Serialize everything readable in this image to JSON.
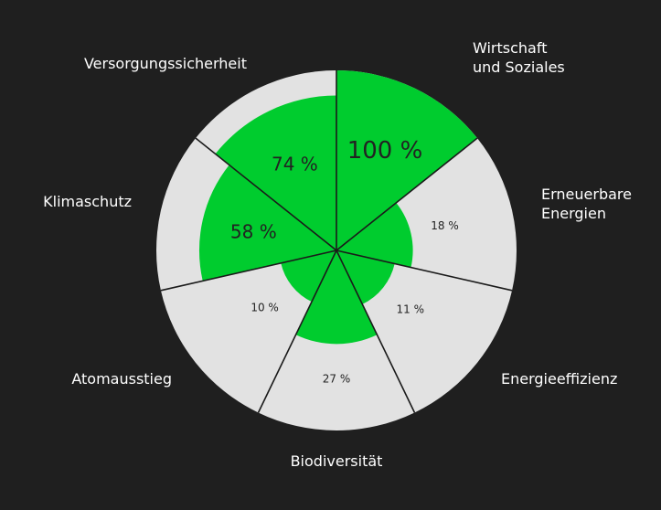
{
  "chart_data": {
    "type": "polar-area",
    "title": "",
    "scale": "area",
    "max": 100,
    "unit": " %",
    "colors": {
      "background": "#1f1f1f",
      "track": "#e2e2e2",
      "fill": "#00cc2e",
      "line": "#1a1a1a",
      "label": "#ffffff",
      "value": "#222222"
    },
    "segments": [
      {
        "name": "Wirtschaft und Soziales",
        "label_lines": [
          "Wirtschaft",
          "und Soziales"
        ],
        "value": 100,
        "value_label": "100 %"
      },
      {
        "name": "Erneuerbare Energien",
        "label_lines": [
          "Erneuerbare",
          "Energien"
        ],
        "value": 18,
        "value_label": "18 %"
      },
      {
        "name": "Energieeffizienz",
        "label_lines": [
          "Energieeffizienz"
        ],
        "value": 11,
        "value_label": "11 %"
      },
      {
        "name": "Biodiversität",
        "label_lines": [
          "Biodiversität"
        ],
        "value": 27,
        "value_label": "27 %"
      },
      {
        "name": "Atomausstieg",
        "label_lines": [
          "Atomausstieg"
        ],
        "value": 10,
        "value_label": "10 %"
      },
      {
        "name": "Klimaschutz",
        "label_lines": [
          "Klimaschutz"
        ],
        "value": 58,
        "value_label": "58 %"
      },
      {
        "name": "Versorgungssicherheit",
        "label_lines": [
          "Versorgungssicherheit"
        ],
        "value": 74,
        "value_label": "74 %"
      }
    ]
  }
}
